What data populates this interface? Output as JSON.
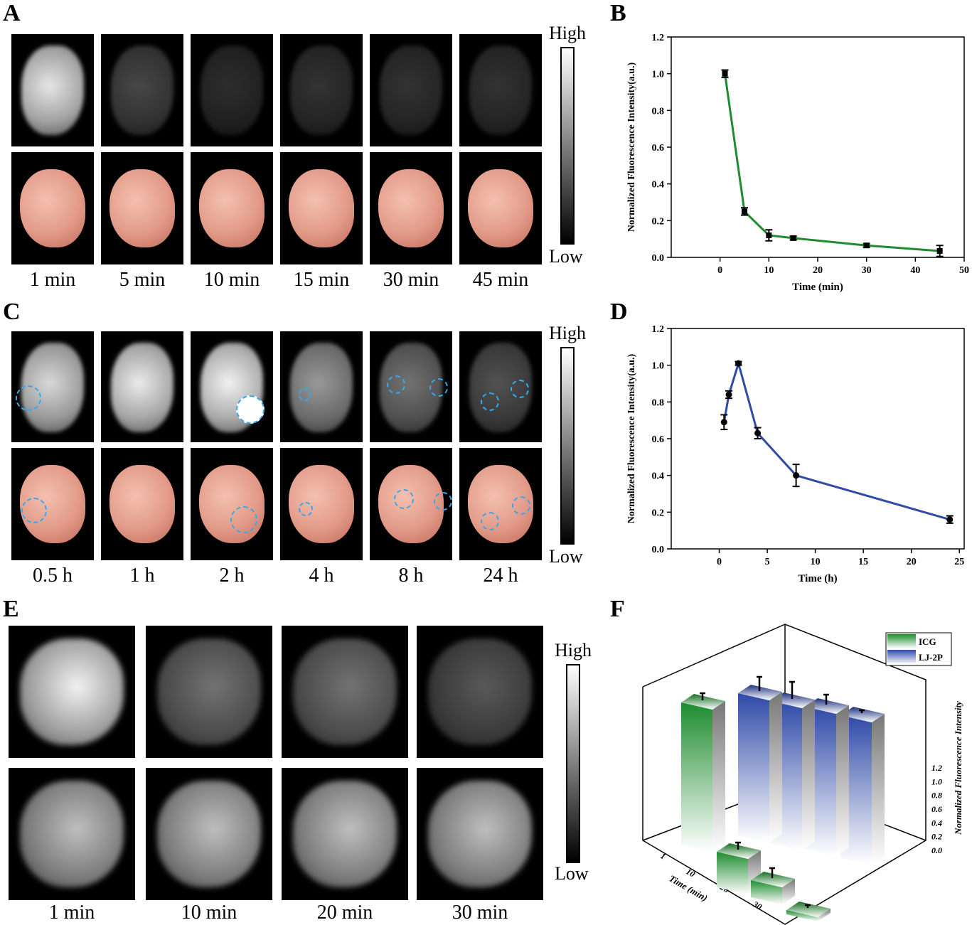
{
  "panels": {
    "a": {
      "letter": "A",
      "labels": [
        "1 min",
        "5 min",
        "10 min",
        "15 min",
        "30 min",
        "45 min"
      ],
      "brightness": [
        0.9,
        0.28,
        0.18,
        0.2,
        0.2,
        0.2
      ]
    },
    "b": {
      "letter": "B"
    },
    "c": {
      "letter": "C",
      "labels": [
        "0.5 h",
        "1 h",
        "2 h",
        "4 h",
        "8 h",
        "24 h"
      ],
      "brightness": [
        0.85,
        0.92,
        0.95,
        0.6,
        0.45,
        0.32
      ]
    },
    "d": {
      "letter": "D"
    },
    "e": {
      "letter": "E",
      "labels": [
        "1 min",
        "10 min",
        "20 min",
        "30 min"
      ],
      "brightness_top": [
        0.95,
        0.45,
        0.45,
        0.35
      ],
      "brightness_bottom": [
        0.75,
        0.75,
        0.75,
        0.75
      ]
    },
    "f": {
      "letter": "F"
    }
  },
  "scales": {
    "high": "High",
    "low": "Low"
  },
  "colors": {
    "green": "#1e8c2e",
    "blue": "#2f4aa8",
    "tissue": "#e8a090",
    "circle": "#33aaee"
  },
  "chart_data": [
    {
      "id": "B",
      "type": "line",
      "x": [
        1,
        5,
        10,
        15,
        30,
        45
      ],
      "y": [
        1.0,
        0.25,
        0.12,
        0.105,
        0.065,
        0.035
      ],
      "err": [
        0.02,
        0.02,
        0.03,
        0.01,
        0.01,
        0.03
      ],
      "xlabel": "Time (min)",
      "ylabel": "Normalized Fluorescence Intensity(a.u.)",
      "xlim": [
        -10,
        50
      ],
      "ylim": [
        0,
        1.2
      ],
      "xticks": [
        "0",
        "10",
        "20",
        "30",
        "40",
        "50"
      ],
      "yticks": [
        "0.0",
        "0.2",
        "0.4",
        "0.6",
        "0.8",
        "1.0",
        "1.2"
      ],
      "color": "#1e8c2e"
    },
    {
      "id": "D",
      "type": "line",
      "x": [
        0.5,
        1,
        2,
        4,
        8,
        24
      ],
      "y": [
        0.69,
        0.84,
        1.01,
        0.63,
        0.4,
        0.16
      ],
      "err": [
        0.04,
        0.02,
        0.01,
        0.03,
        0.06,
        0.02
      ],
      "xlabel": "Time (h)",
      "ylabel": "Normalized Fluorescence Intensity(a.u.)",
      "xlim": [
        -5,
        25.5
      ],
      "ylim": [
        0,
        1.2
      ],
      "xticks": [
        "0",
        "5",
        "10",
        "15",
        "20",
        "25"
      ],
      "yticks": [
        "0.0",
        "0.2",
        "0.4",
        "0.6",
        "0.8",
        "1.0",
        "1.2"
      ],
      "color": "#2f4aa8"
    },
    {
      "id": "F",
      "type": "bar",
      "categories": [
        "1",
        "10",
        "20",
        "30"
      ],
      "series": [
        {
          "name": "ICG",
          "values": [
            1.0,
            0.25,
            0.12,
            0.03
          ],
          "err": [
            0.05,
            0.05,
            0.07,
            0.02
          ]
        },
        {
          "name": "LJ-2P",
          "values": [
            1.0,
            1.0,
            1.0,
            1.0
          ],
          "err": [
            0.1,
            0.12,
            0.07,
            0.02
          ]
        }
      ],
      "xlabel": "Time (min)",
      "zlabel": "Normalized Fluorescence Intensity",
      "zticks": [
        "0.0",
        "0.2",
        "0.4",
        "0.6",
        "0.8",
        "1.0",
        "1.2"
      ]
    }
  ]
}
